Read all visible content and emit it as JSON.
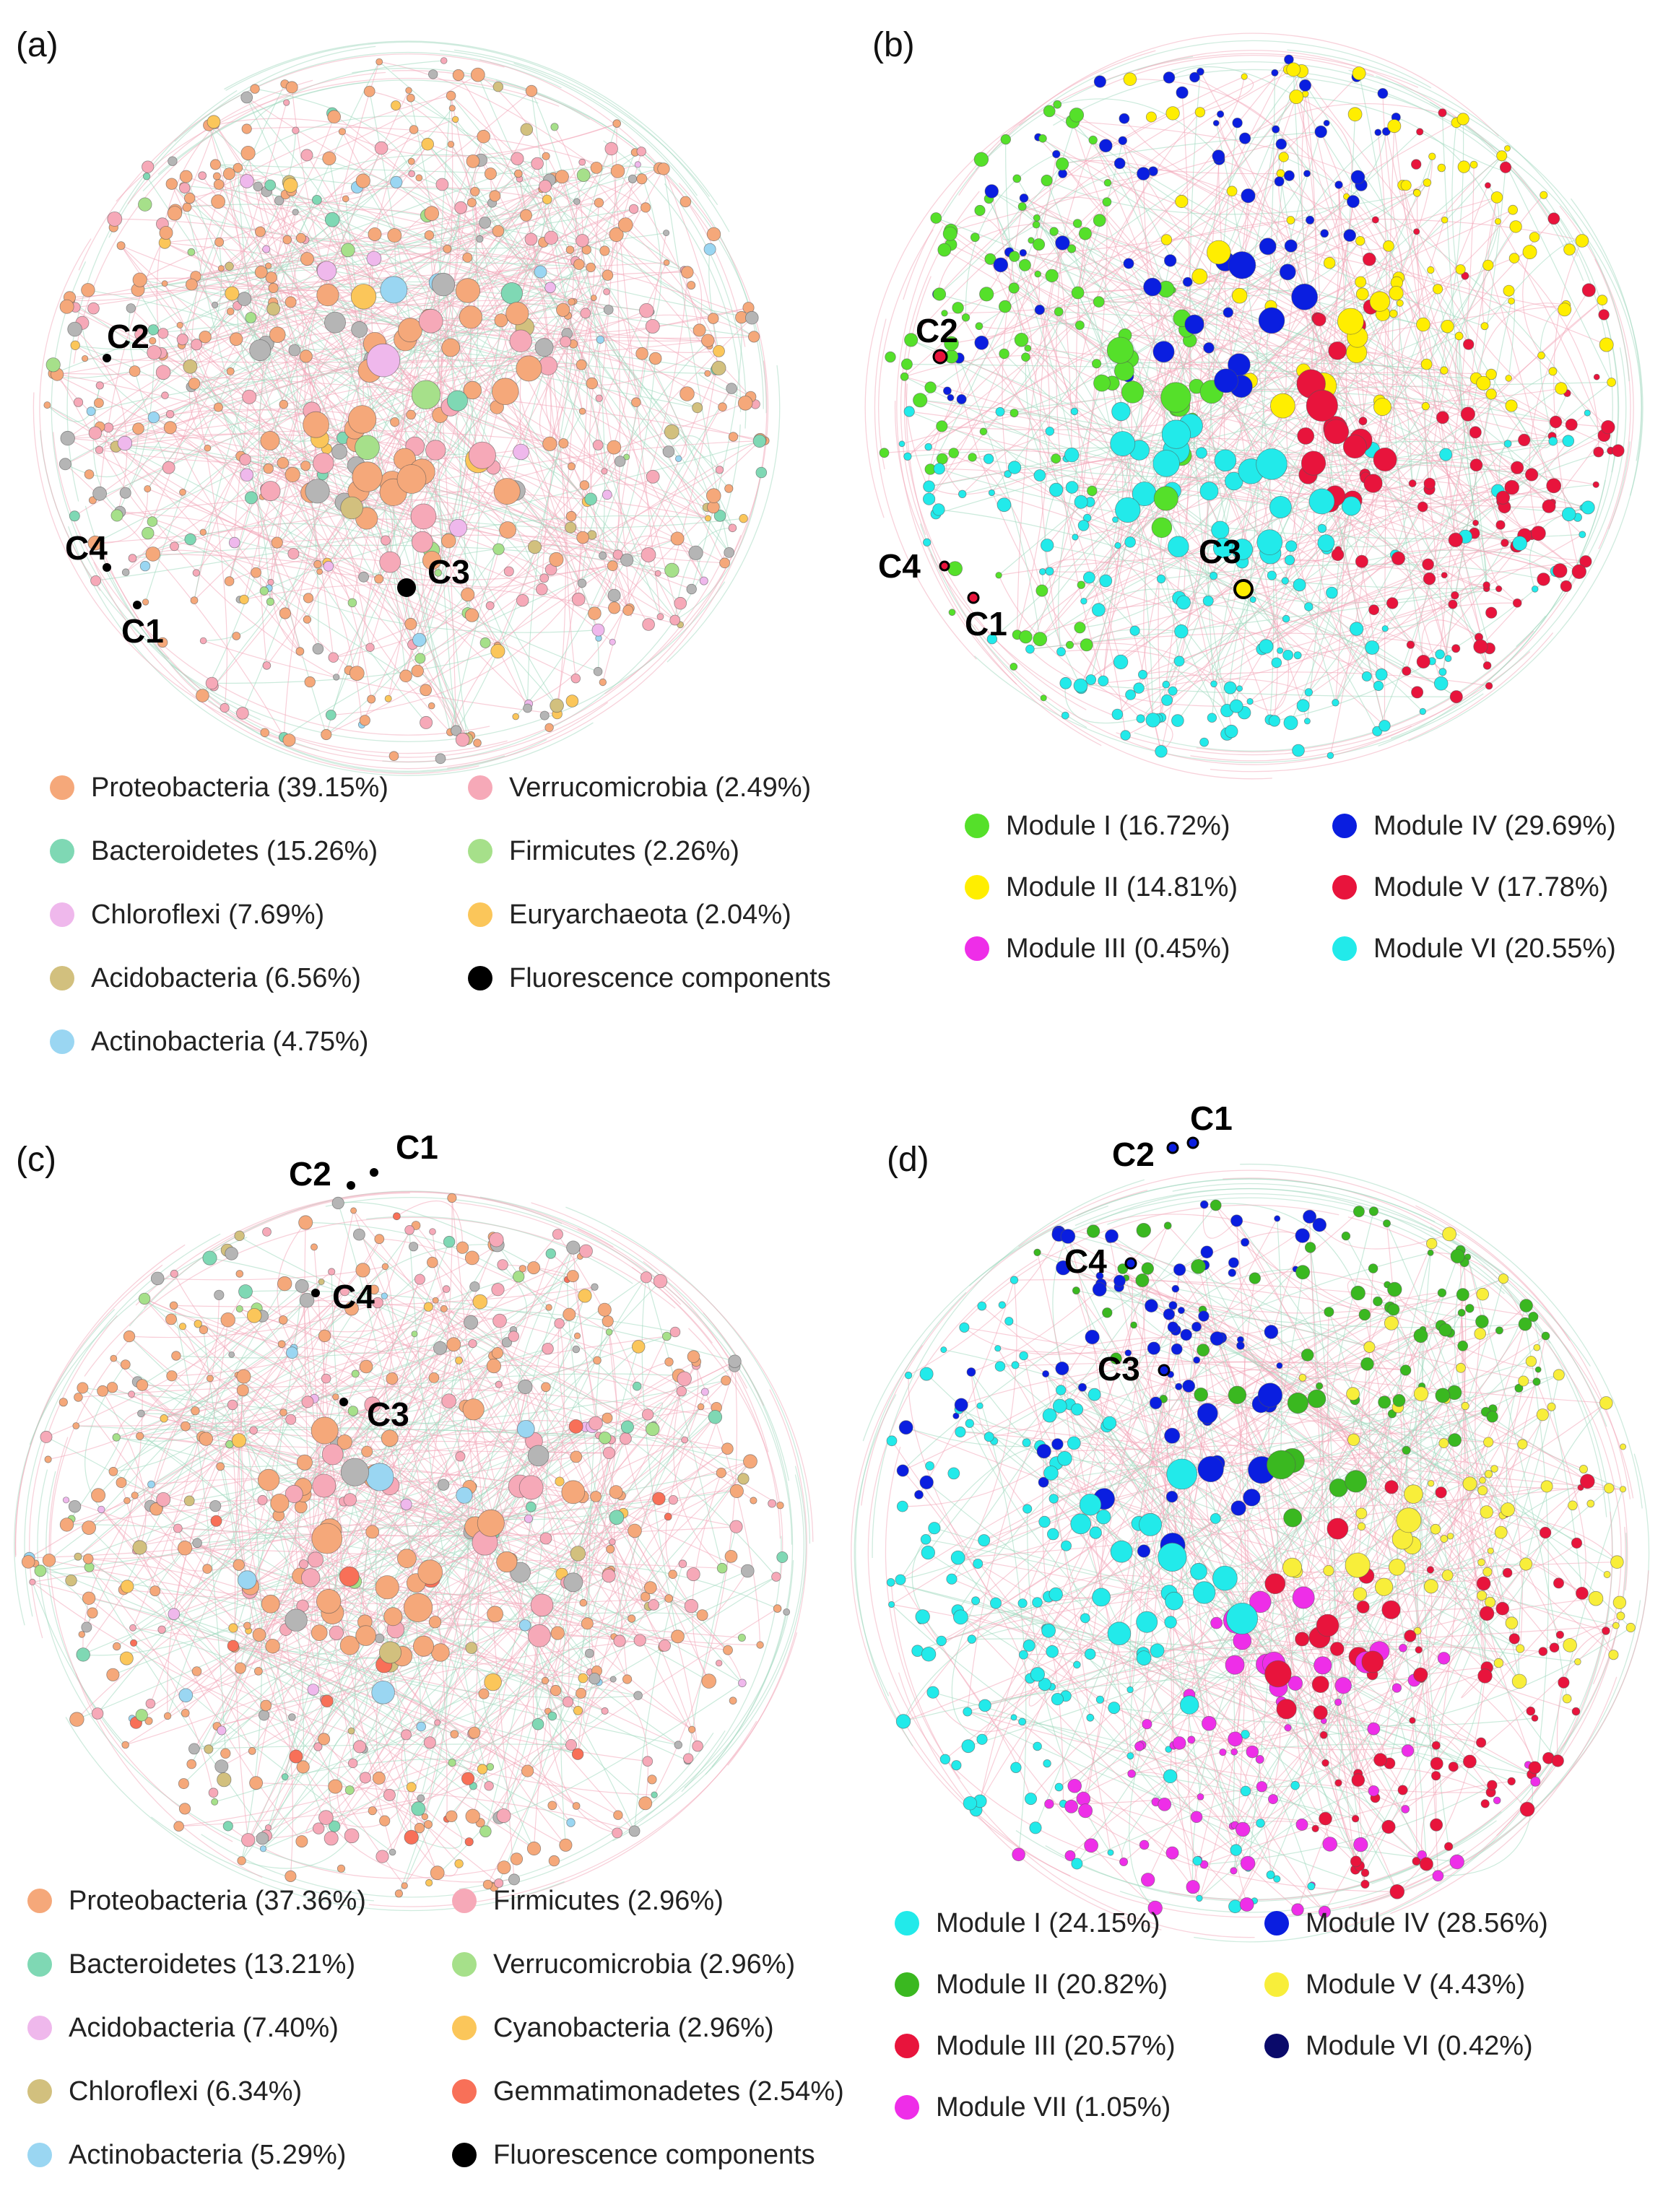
{
  "panels": [
    {
      "label": "(a)",
      "kind": "phylum",
      "nodes_seed": 11,
      "components": [
        {
          "name": "C2",
          "marker": "dot"
        },
        {
          "name": "C4",
          "marker": "dot"
        },
        {
          "name": "C1",
          "marker": "dot"
        },
        {
          "name": "C3",
          "marker": "dot-large"
        }
      ],
      "legend": [
        {
          "label": "Proteobacteria (39.15%)",
          "color": "#f5a87a"
        },
        {
          "label": "Verrucomicrobia (2.49%)",
          "color": "#f6a9b8"
        },
        {
          "label": "Bacteroidetes (15.26%)",
          "color": "#7fd8b4"
        },
        {
          "label": "Firmicutes (2.26%)",
          "color": "#a6e08a"
        },
        {
          "label": "Chloroflexi (7.69%)",
          "color": "#efb8ec"
        },
        {
          "label": "Euryarchaeota (2.04%)",
          "color": "#fbc65a"
        },
        {
          "label": "Acidobacteria (6.56%)",
          "color": "#d2c07e"
        },
        {
          "label": "Fluorescence components",
          "color": "#000000"
        },
        {
          "label": "Actinobacteria (4.75%)",
          "color": "#9ad6f2"
        }
      ]
    },
    {
      "label": "(b)",
      "kind": "module",
      "nodes_seed": 23,
      "components": [
        {
          "name": "C2",
          "marker": "ring"
        },
        {
          "name": "C4",
          "marker": "ring"
        },
        {
          "name": "C1",
          "marker": "ring"
        },
        {
          "name": "C3",
          "marker": "ring-large"
        }
      ],
      "legend": [
        {
          "label": "Module I (16.72%)",
          "color": "#55e02a"
        },
        {
          "label": "Module IV (29.69%)",
          "color": "#0a1ee0"
        },
        {
          "label": "Module II (14.81%)",
          "color": "#ffee00"
        },
        {
          "label": "Module V (17.78%)",
          "color": "#e8143c"
        },
        {
          "label": "Module III (0.45%)",
          "color": "#ee2ee8"
        },
        {
          "label": "Module VI (20.55%)",
          "color": "#22eaea"
        }
      ]
    },
    {
      "label": "(c)",
      "kind": "phylum",
      "nodes_seed": 37,
      "components": [
        {
          "name": "C1",
          "marker": "dot"
        },
        {
          "name": "C2",
          "marker": "dot"
        },
        {
          "name": "C4",
          "marker": "dot"
        },
        {
          "name": "C3",
          "marker": "dot"
        }
      ],
      "legend": [
        {
          "label": "Proteobacteria (37.36%)",
          "color": "#f5a87a"
        },
        {
          "label": "Firmicutes (2.96%)",
          "color": "#f6a9b8"
        },
        {
          "label": "Bacteroidetes (13.21%)",
          "color": "#7fd8b4"
        },
        {
          "label": "Verrucomicrobia (2.96%)",
          "color": "#a6e08a"
        },
        {
          "label": "Acidobacteria (7.40%)",
          "color": "#efb8ec"
        },
        {
          "label": "Cyanobacteria (2.96%)",
          "color": "#fbc65a"
        },
        {
          "label": "Chloroflexi (6.34%)",
          "color": "#d2c07e"
        },
        {
          "label": "Gemmatimonadetes (2.54%)",
          "color": "#f87058"
        },
        {
          "label": "Actinobacteria (5.29%)",
          "color": "#9ad6f2"
        },
        {
          "label": "Fluorescence components",
          "color": "#000000"
        }
      ]
    },
    {
      "label": "(d)",
      "kind": "module",
      "nodes_seed": 53,
      "components": [
        {
          "name": "C1",
          "marker": "ring"
        },
        {
          "name": "C2",
          "marker": "ring"
        },
        {
          "name": "C4",
          "marker": "ring"
        },
        {
          "name": "C3",
          "marker": "ring"
        }
      ],
      "legend": [
        {
          "label": "Module I (24.15%)",
          "color": "#22eaea"
        },
        {
          "label": "Module IV (28.56%)",
          "color": "#0a1ee0"
        },
        {
          "label": "Module II (20.82%)",
          "color": "#3ab820"
        },
        {
          "label": "Module V (4.43%)",
          "color": "#f8ee3a"
        },
        {
          "label": "Module III (20.57%)",
          "color": "#e8143c"
        },
        {
          "label": "Module VI (0.42%)",
          "color": "#0a0a6a"
        },
        {
          "label": "Module VII (1.05%)",
          "color": "#ee2ee8"
        }
      ]
    }
  ],
  "colors": {
    "grey_node": "#b5b5b5",
    "edge_pink": "#f2a6b8",
    "edge_green": "#9fd8bd",
    "node_stroke": "#555555"
  }
}
